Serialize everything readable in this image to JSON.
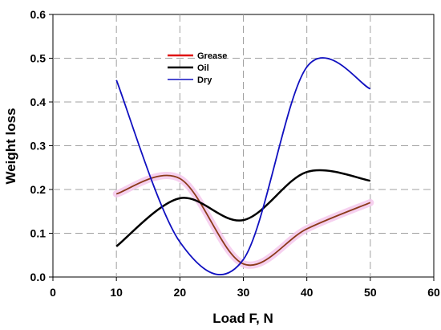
{
  "chart_data": {
    "type": "line",
    "xlabel": "Load F, N",
    "ylabel": "Weight loss",
    "xlim": [
      0,
      60
    ],
    "ylim": [
      0,
      0.6
    ],
    "x_ticks": [
      "0",
      "10",
      "20",
      "30",
      "40",
      "50",
      "60"
    ],
    "y_ticks": [
      "0.0",
      "0.1",
      "0.2",
      "0.3",
      "0.4",
      "0.5",
      "0.6"
    ],
    "grid": true,
    "legend_position": "top-center",
    "x": [
      10,
      20,
      30,
      40,
      50
    ],
    "series": [
      {
        "name": "Grease",
        "color": "#8b3a1a",
        "legend_color": "#e01010",
        "glow": "#f4c8ec",
        "values": [
          0.19,
          0.225,
          0.03,
          0.11,
          0.17
        ]
      },
      {
        "name": "Oil",
        "color": "#000000",
        "legend_color": "#000000",
        "values": [
          0.07,
          0.18,
          0.13,
          0.24,
          0.22
        ]
      },
      {
        "name": "Dry",
        "color": "#1010c0",
        "legend_color": "#1010c0",
        "values": [
          0.45,
          0.08,
          0.04,
          0.48,
          0.43
        ]
      }
    ]
  }
}
